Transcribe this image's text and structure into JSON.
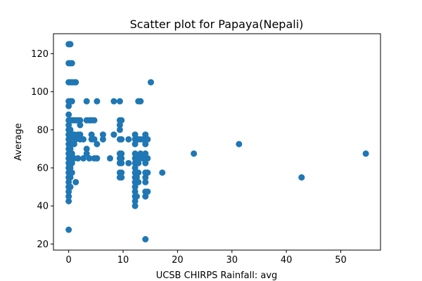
{
  "chart_data": {
    "type": "scatter",
    "title": "Scatter plot for Papaya(Nepali)",
    "xlabel": "UCSB CHIRPS Rainfall: avg",
    "ylabel": "Average",
    "xlim": [
      -2.8,
      57.3
    ],
    "ylim": [
      16.8,
      130.5
    ],
    "xticks": [
      0,
      10,
      20,
      30,
      40,
      50
    ],
    "yticks": [
      20,
      40,
      60,
      80,
      100,
      120
    ],
    "grid": false,
    "marker_color": "#1f77b4",
    "series": [
      {
        "points": [
          [
            0,
            125
          ],
          [
            0,
            115
          ],
          [
            0,
            105
          ],
          [
            0,
            95
          ],
          [
            0,
            92.5
          ],
          [
            0,
            88
          ],
          [
            0,
            85
          ],
          [
            0,
            82.5
          ],
          [
            0,
            80
          ],
          [
            0,
            77.5
          ],
          [
            0,
            75
          ],
          [
            0,
            72.5
          ],
          [
            0,
            70
          ],
          [
            0,
            67.5
          ],
          [
            0,
            65
          ],
          [
            0,
            62.5
          ],
          [
            0,
            60
          ],
          [
            0,
            57.5
          ],
          [
            0,
            55
          ],
          [
            0,
            52.5
          ],
          [
            0,
            50
          ],
          [
            0,
            47.5
          ],
          [
            0,
            45
          ],
          [
            0,
            42.5
          ],
          [
            0,
            27.5
          ],
          [
            0.3,
            125
          ],
          [
            0.3,
            115
          ],
          [
            0.3,
            105
          ],
          [
            0.3,
            95
          ],
          [
            0.3,
            85
          ],
          [
            0.3,
            80
          ],
          [
            0.3,
            75
          ],
          [
            0.3,
            70
          ],
          [
            0.3,
            65
          ],
          [
            0.3,
            60
          ],
          [
            0.3,
            55
          ],
          [
            0.3,
            50
          ],
          [
            0.6,
            115
          ],
          [
            0.6,
            105
          ],
          [
            0.6,
            95
          ],
          [
            0.6,
            85
          ],
          [
            0.6,
            77.5
          ],
          [
            0.6,
            72.5
          ],
          [
            0.6,
            67.5
          ],
          [
            0.6,
            62.5
          ],
          [
            0.6,
            57.5
          ],
          [
            1.0,
            105
          ],
          [
            1.0,
            85
          ],
          [
            1.0,
            77.5
          ],
          [
            1.0,
            72.5
          ],
          [
            1.0,
            65
          ],
          [
            1.3,
            105
          ],
          [
            1.3,
            85
          ],
          [
            1.3,
            75
          ],
          [
            1.3,
            52.5
          ],
          [
            1.7,
            85
          ],
          [
            1.7,
            77.5
          ],
          [
            1.7,
            65
          ],
          [
            2.1,
            85
          ],
          [
            2.1,
            82.5
          ],
          [
            2.1,
            77.5
          ],
          [
            2.1,
            75
          ],
          [
            2.7,
            75
          ],
          [
            2.7,
            65
          ],
          [
            3.3,
            95
          ],
          [
            3.3,
            85
          ],
          [
            3.3,
            70
          ],
          [
            3.3,
            67.5
          ],
          [
            3.8,
            85
          ],
          [
            3.8,
            65
          ],
          [
            4.2,
            85
          ],
          [
            4.2,
            77.5
          ],
          [
            4.2,
            75
          ],
          [
            4.7,
            85
          ],
          [
            4.7,
            75
          ],
          [
            4.7,
            65
          ],
          [
            5.2,
            95
          ],
          [
            5.2,
            72.5
          ],
          [
            5.2,
            65
          ],
          [
            6.3,
            77.5
          ],
          [
            6.3,
            75
          ],
          [
            7.6,
            65
          ],
          [
            8.3,
            95
          ],
          [
            8.3,
            77.5
          ],
          [
            9.4,
            95
          ],
          [
            9.4,
            85
          ],
          [
            9.4,
            82.5
          ],
          [
            9.4,
            80
          ],
          [
            9.4,
            75
          ],
          [
            9.4,
            67.5
          ],
          [
            9.4,
            65
          ],
          [
            9.4,
            62.5
          ],
          [
            9.4,
            57.5
          ],
          [
            9.4,
            55
          ],
          [
            9.7,
            85
          ],
          [
            9.7,
            75
          ],
          [
            9.7,
            67.5
          ],
          [
            9.7,
            65
          ],
          [
            9.7,
            62.5
          ],
          [
            9.7,
            57.5
          ],
          [
            9.7,
            55
          ],
          [
            11.0,
            75
          ],
          [
            11.0,
            62.5
          ],
          [
            12.2,
            77.5
          ],
          [
            12.2,
            75
          ],
          [
            12.2,
            72.5
          ],
          [
            12.2,
            67.5
          ],
          [
            12.2,
            65
          ],
          [
            12.2,
            62.5
          ],
          [
            12.2,
            60
          ],
          [
            12.2,
            57.5
          ],
          [
            12.2,
            55
          ],
          [
            12.2,
            52.5
          ],
          [
            12.2,
            50
          ],
          [
            12.2,
            47.5
          ],
          [
            12.2,
            45
          ],
          [
            12.2,
            42.5
          ],
          [
            12.2,
            40
          ],
          [
            12.5,
            75
          ],
          [
            12.5,
            65
          ],
          [
            12.5,
            55
          ],
          [
            12.5,
            45
          ],
          [
            12.8,
            95
          ],
          [
            12.8,
            75
          ],
          [
            12.8,
            65
          ],
          [
            12.8,
            62.5
          ],
          [
            12.8,
            57.5
          ],
          [
            12.8,
            52.5
          ],
          [
            13.2,
            95
          ],
          [
            13.2,
            75
          ],
          [
            13.2,
            67.5
          ],
          [
            13.2,
            65
          ],
          [
            13.7,
            75
          ],
          [
            13.7,
            65
          ],
          [
            14.1,
            77.5
          ],
          [
            14.1,
            75
          ],
          [
            14.1,
            72.5
          ],
          [
            14.1,
            67.5
          ],
          [
            14.1,
            65
          ],
          [
            14.1,
            62.5
          ],
          [
            14.1,
            57.5
          ],
          [
            14.1,
            55
          ],
          [
            14.1,
            52.5
          ],
          [
            14.1,
            47.5
          ],
          [
            14.1,
            45
          ],
          [
            14.1,
            22.5
          ],
          [
            14.5,
            75
          ],
          [
            14.5,
            65
          ],
          [
            14.5,
            57.5
          ],
          [
            14.5,
            47.5
          ],
          [
            15.1,
            105
          ],
          [
            17.2,
            57.5
          ],
          [
            23.0,
            67.5
          ],
          [
            31.3,
            72.5
          ],
          [
            42.8,
            55
          ],
          [
            54.6,
            67.5
          ]
        ]
      }
    ]
  }
}
